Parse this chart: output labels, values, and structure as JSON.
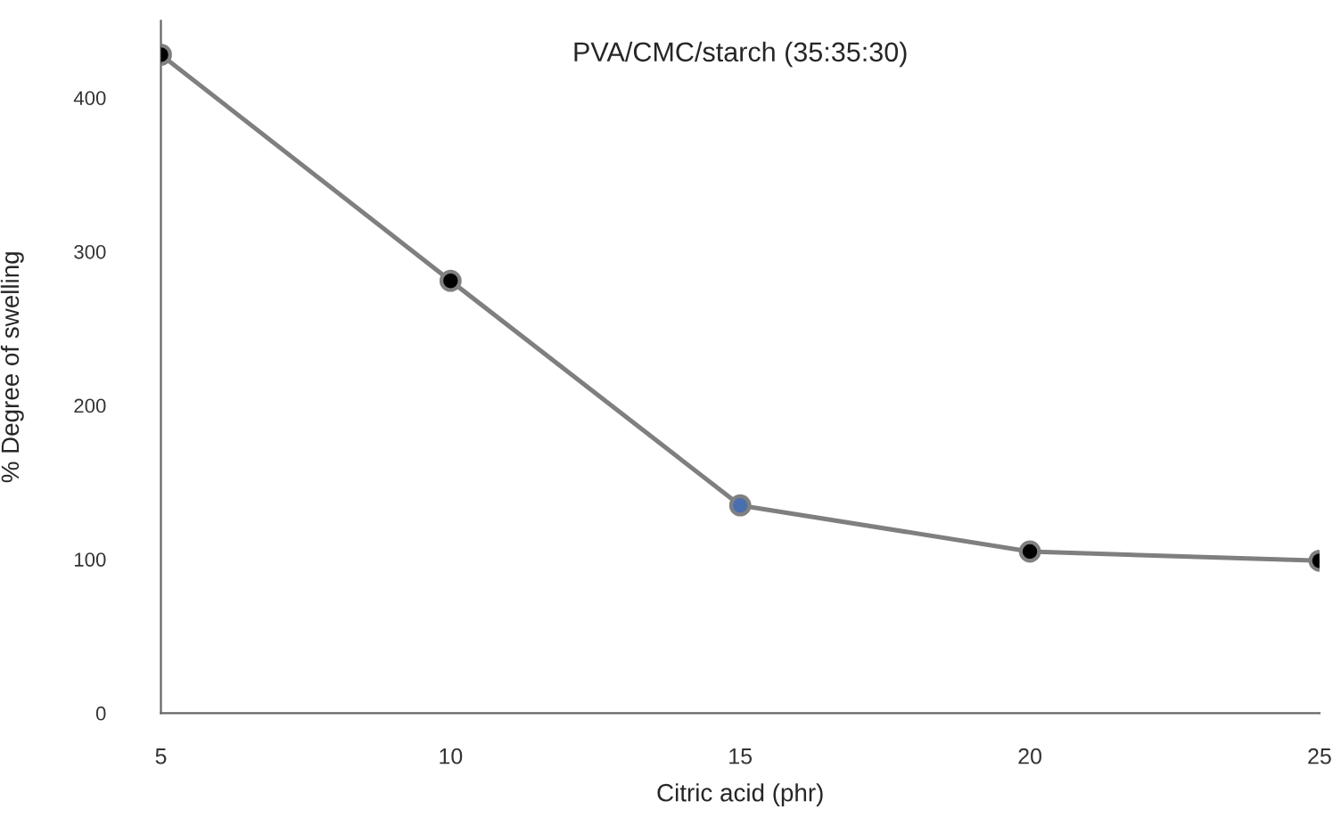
{
  "chart_data": {
    "type": "line",
    "title": "PVA/CMC/starch (35:35:30)",
    "xlabel": "Citric acid (phr)",
    "ylabel": "% Degree of swelling",
    "x": [
      5,
      10,
      15,
      20,
      25
    ],
    "series": [
      {
        "color": "#7f7f7f",
        "colors": [
          "#000000",
          "#000000",
          "#4a6fb0",
          "#000000",
          "#000000"
        ],
        "values": [
          428,
          281,
          135,
          105,
          99
        ]
      }
    ],
    "xlim": [
      5,
      25
    ],
    "xticks": [
      5,
      10,
      15,
      20,
      25
    ],
    "ylim": [
      0,
      450
    ],
    "yticks": [
      0,
      100,
      200,
      300,
      400
    ],
    "grid": false,
    "marker": "circle",
    "line_style": "solid"
  }
}
